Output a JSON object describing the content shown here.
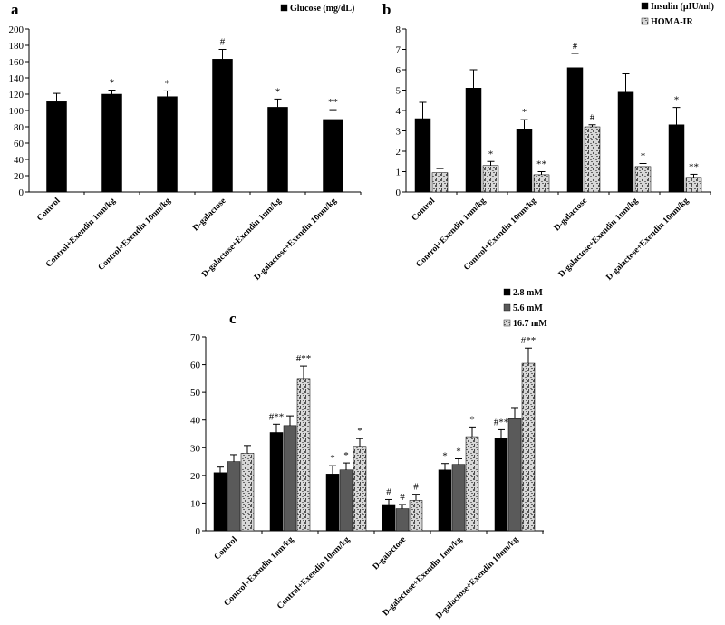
{
  "colors": {
    "black": "#000000",
    "gray": "#5a5a5a",
    "pattern_light": "#d8d8d8",
    "pattern_dark": "#555555"
  },
  "chart_data": [
    {
      "panel": "a",
      "type": "bar",
      "categories": [
        "Control",
        "Control+Exendin 1nm/kg",
        "Control+Exendin 10nm/kg",
        "D-galactose",
        "D-galactose+Exendin 1nm/kg",
        "D-galactose+Exendin 10nm/kg"
      ],
      "series": [
        {
          "name": "Glucose (mg/dL)",
          "values": [
            111,
            120,
            117,
            163,
            104,
            89
          ],
          "errors": [
            10,
            5,
            7,
            12,
            10,
            12
          ],
          "annotations": [
            "",
            "*",
            "*",
            "#",
            "*",
            "**"
          ]
        }
      ],
      "ylim": [
        0,
        200
      ],
      "yticks": [
        0,
        20,
        40,
        60,
        80,
        100,
        120,
        140,
        160,
        180,
        200
      ],
      "legend": "top-right",
      "grid": false
    },
    {
      "panel": "b",
      "type": "bar",
      "categories": [
        "Control",
        "Control+Exendin 1nm/kg",
        "Control+Exendin 10nm/kg",
        "D-galactose",
        "D-galactose+Exendin 1nm/kg",
        "D-galactose+Exendin 10nm/kg"
      ],
      "series": [
        {
          "name": "Insulin (µIU/ml)",
          "values": [
            3.6,
            5.1,
            3.1,
            6.1,
            4.9,
            3.3
          ],
          "errors": [
            0.8,
            0.9,
            0.45,
            0.7,
            0.9,
            0.85
          ],
          "annotations": [
            "",
            "",
            "*",
            "#",
            "",
            "*"
          ]
        },
        {
          "name": "HOMA-IR",
          "values": [
            0.95,
            1.3,
            0.85,
            3.2,
            1.25,
            0.72
          ],
          "errors": [
            0.2,
            0.2,
            0.15,
            0.1,
            0.15,
            0.15
          ],
          "annotations": [
            "",
            "*",
            "**",
            "#",
            "*",
            "**"
          ]
        }
      ],
      "ylim": [
        0,
        8
      ],
      "yticks": [
        0,
        1,
        2,
        3,
        4,
        5,
        6,
        7,
        8
      ],
      "legend": "top-right",
      "grid": false
    },
    {
      "panel": "c",
      "type": "bar",
      "categories": [
        "Control",
        "Control+Exendin 1nm/kg",
        "Control+Exendin 10nm/kg",
        "D-galactose",
        "D-galactose+Exendin 1nm/kg",
        "D-galactose+Exendin 10nm/kg"
      ],
      "series": [
        {
          "name": "2.8 mM",
          "values": [
            21,
            35.5,
            20.5,
            9.5,
            22,
            33.5
          ],
          "errors": [
            2,
            3,
            3,
            1.8,
            2.3,
            3
          ],
          "annotations": [
            "",
            "#**",
            "*",
            "#",
            "*",
            "#**"
          ]
        },
        {
          "name": "5.6 mM",
          "values": [
            25,
            38,
            22,
            8,
            24,
            40.5
          ],
          "errors": [
            2.5,
            3.5,
            2.5,
            1.5,
            2,
            4
          ],
          "annotations": [
            "",
            "",
            "*",
            "#",
            "*",
            ""
          ]
        },
        {
          "name": "16.7 mM",
          "values": [
            28,
            55,
            30.5,
            11,
            34,
            60.5
          ],
          "errors": [
            2.8,
            4.5,
            2.8,
            2.2,
            3.5,
            5.5
          ],
          "annotations": [
            "",
            "#**",
            "*",
            "#",
            "*",
            "#**"
          ]
        }
      ],
      "ylim": [
        0,
        70
      ],
      "yticks": [
        0,
        10,
        20,
        30,
        40,
        50,
        60,
        70
      ],
      "legend": "top-right",
      "grid": false
    }
  ]
}
